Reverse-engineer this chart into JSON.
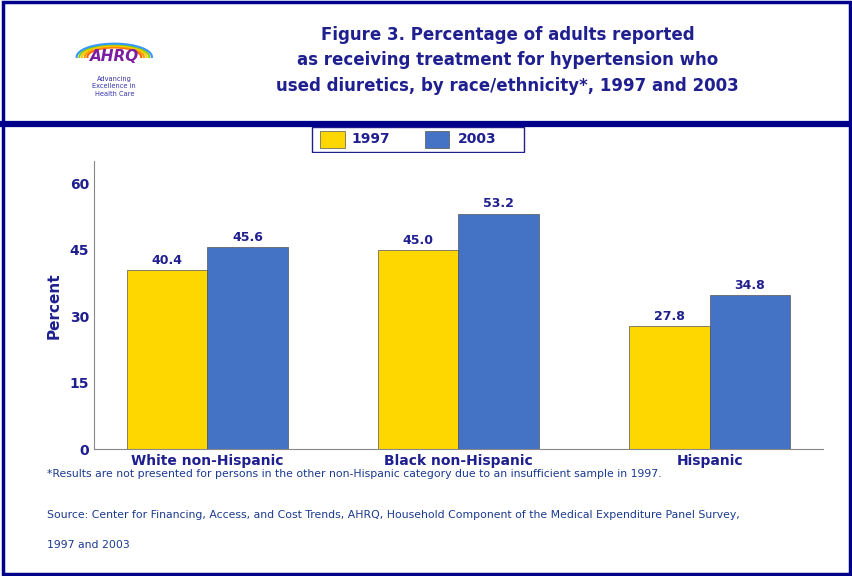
{
  "title_line1": "Figure 3. Percentage of adults reported",
  "title_line2": "as receiving treatment for hypertension who",
  "title_line3": "used diuretics, by race/ethnicity*, 1997 and 2003",
  "categories": [
    "White non-Hispanic",
    "Black non-Hispanic",
    "Hispanic"
  ],
  "values_1997": [
    40.4,
    45.0,
    27.8
  ],
  "values_2003": [
    45.6,
    53.2,
    34.8
  ],
  "color_1997": "#FFD700",
  "color_2003": "#4472C4",
  "ylabel": "Percent",
  "ylim": [
    0,
    65
  ],
  "yticks": [
    0,
    15,
    30,
    45,
    60
  ],
  "legend_labels": [
    "1997",
    "2003"
  ],
  "bar_width": 0.32,
  "footnote1": "*Results are not presented for persons in the other non-Hispanic category due to an insufficient sample in 1997.",
  "footnote2": "Source: Center for Financing, Access, and Cost Trends, AHRQ, Household Component of the Medical Expenditure Panel Survey,",
  "footnote3": "1997 and 2003",
  "bg_color": "#FFFFFF",
  "title_color": "#1F1F8F",
  "axis_label_color": "#1F1F8F",
  "tick_label_color": "#1F1F8F",
  "bar_label_color": "#1F1F8F",
  "footnote_color": "#1A3A8F",
  "border_color": "#00008B",
  "header_line_color": "#00008B",
  "spine_color": "#888888"
}
